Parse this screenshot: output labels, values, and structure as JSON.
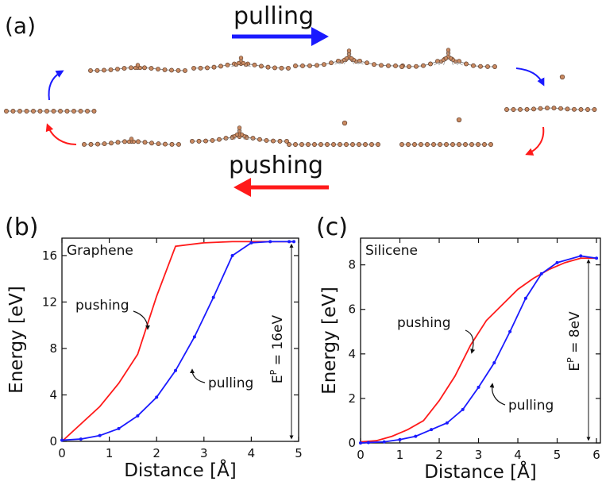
{
  "panel_a": {
    "label": "(a)",
    "pulling_label": "pulling",
    "pushing_label": "pushing",
    "colors": {
      "pulling": "#1a1aff",
      "pushing": "#ff1a1a",
      "atom": "#c98a62"
    }
  },
  "chart_data": [
    {
      "type": "line",
      "panel_label": "(b)",
      "material": "Graphene",
      "xlabel": "Distance [Å]",
      "ylabel": "Energy [eV]",
      "xlim": [
        0,
        5
      ],
      "ylim": [
        0,
        17.5
      ],
      "xticks": [
        0,
        1,
        2,
        3,
        4,
        5
      ],
      "yticks": [
        0,
        4,
        8,
        12,
        16
      ],
      "series": [
        {
          "name": "pushing",
          "color": "#ff1a1a",
          "markers": false,
          "x": [
            0,
            0.8,
            1.2,
            1.6,
            2.0,
            2.4,
            3.0,
            3.6,
            4.2,
            4.9
          ],
          "y": [
            0,
            3.0,
            5.0,
            7.5,
            12.5,
            16.8,
            17.1,
            17.2,
            17.2,
            17.2
          ]
        },
        {
          "name": "pulling",
          "color": "#1a1aff",
          "markers": true,
          "x": [
            0,
            0.4,
            0.8,
            1.2,
            1.6,
            2.0,
            2.4,
            2.8,
            3.2,
            3.6,
            4.0,
            4.4,
            4.8,
            4.9
          ],
          "y": [
            0.1,
            0.2,
            0.5,
            1.1,
            2.2,
            3.8,
            6.1,
            9.0,
            12.4,
            16.0,
            17.1,
            17.2,
            17.2,
            17.2
          ]
        }
      ],
      "annotations": {
        "pushing": "pushing",
        "pulling": "pulling",
        "energy_prefix": "E",
        "energy_sup": "P",
        "energy_value": " = 16eV"
      }
    },
    {
      "type": "line",
      "panel_label": "(c)",
      "material": "Silicene",
      "xlabel": "Distance [Å]",
      "ylabel": "Energy [eV]",
      "xlim": [
        0,
        6.1
      ],
      "ylim": [
        0,
        9.2
      ],
      "xticks": [
        0,
        1,
        2,
        3,
        4,
        5,
        6
      ],
      "yticks": [
        0,
        2,
        4,
        6,
        8
      ],
      "series": [
        {
          "name": "pushing",
          "color": "#ff1a1a",
          "markers": false,
          "x": [
            0,
            0.4,
            0.8,
            1.2,
            1.6,
            2.0,
            2.4,
            2.8,
            3.2,
            3.6,
            4.0,
            4.4,
            4.8,
            5.2,
            5.6,
            6.0
          ],
          "y": [
            0.05,
            0.1,
            0.3,
            0.6,
            1.0,
            1.9,
            3.0,
            4.4,
            5.5,
            6.2,
            6.9,
            7.4,
            7.8,
            8.1,
            8.3,
            8.3
          ]
        },
        {
          "name": "pulling",
          "color": "#1a1aff",
          "markers": true,
          "x": [
            0,
            0.2,
            0.6,
            1.0,
            1.4,
            1.8,
            2.2,
            2.6,
            3.0,
            3.4,
            3.8,
            4.2,
            4.6,
            5.0,
            5.6,
            6.0
          ],
          "y": [
            0.0,
            0.02,
            0.05,
            0.15,
            0.3,
            0.6,
            0.9,
            1.5,
            2.5,
            3.6,
            5.0,
            6.5,
            7.6,
            8.1,
            8.4,
            8.3
          ]
        }
      ],
      "annotations": {
        "pushing": "pushing",
        "pulling": "pulling",
        "energy_prefix": "E",
        "energy_sup": "P",
        "energy_value": " = 8eV"
      }
    }
  ]
}
